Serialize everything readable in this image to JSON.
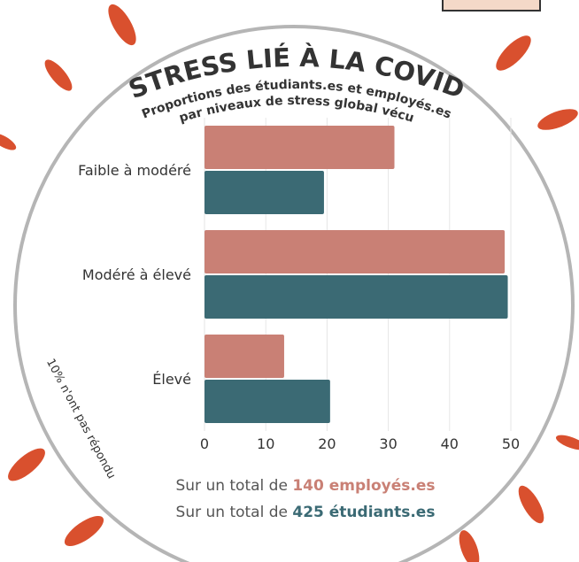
{
  "chart_data": {
    "type": "hbar",
    "title": "STRESS LIÉ À LA COVID",
    "subtitle": [
      "Proportions des étudiants.es et employés.es",
      "par niveaux de stress global vécu"
    ],
    "annotation": "10% n'ont pas répondu",
    "legend_prefix": "Sur un total de",
    "categories": [
      "Faible à modéré",
      "Modéré à élevé",
      "Élevé"
    ],
    "series": [
      {
        "name": "140 employés.es",
        "color": "#c98075",
        "values": [
          31,
          49,
          13
        ]
      },
      {
        "name": "425 étudiants.es",
        "color": "#3b6a74",
        "values": [
          19.5,
          49.5,
          20.5
        ]
      }
    ],
    "xlim": [
      0,
      50
    ],
    "xticks": [
      0,
      10,
      20,
      30,
      40,
      50
    ],
    "grid": true
  }
}
